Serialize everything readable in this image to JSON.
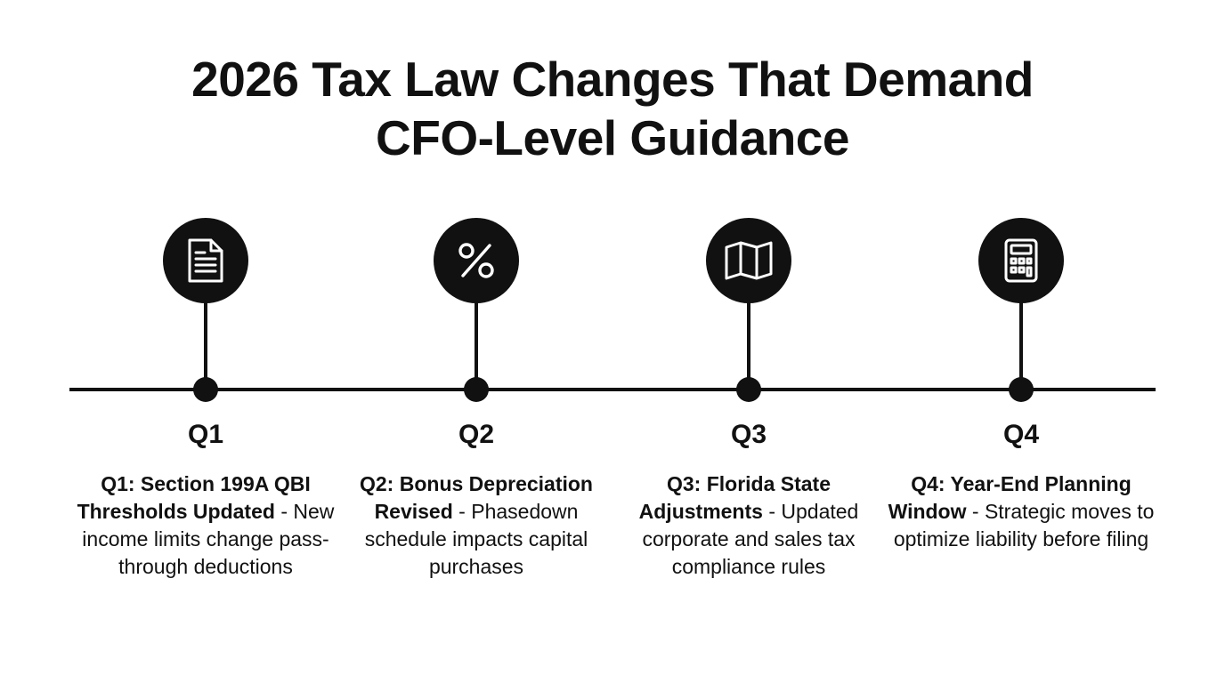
{
  "title": {
    "line1": "2026 Tax Law Changes That Demand",
    "line2": "CFO-Level Guidance"
  },
  "milestones": [
    {
      "icon": "document-icon",
      "label": "Q1",
      "heading": "Q1: Section 199A QBI Thresholds Updated",
      "separator": " - ",
      "body": "New income limits change pass-through deductions"
    },
    {
      "icon": "percent-icon",
      "label": "Q2",
      "heading": "Q2: Bonus Depreciation Revised",
      "separator": " - ",
      "body": "Phasedown schedule impacts capital purchases"
    },
    {
      "icon": "map-icon",
      "label": "Q3",
      "heading": "Q3: Florida State Adjustments",
      "separator": " - ",
      "body": "Updated corporate and sales tax compliance rules"
    },
    {
      "icon": "calculator-icon",
      "label": "Q4",
      "heading": "Q4: Year-End Planning Window",
      "separator": " - ",
      "body": "Strategic moves to optimize liability before filing"
    }
  ],
  "colors": {
    "ink": "#111111",
    "background": "#ffffff"
  }
}
